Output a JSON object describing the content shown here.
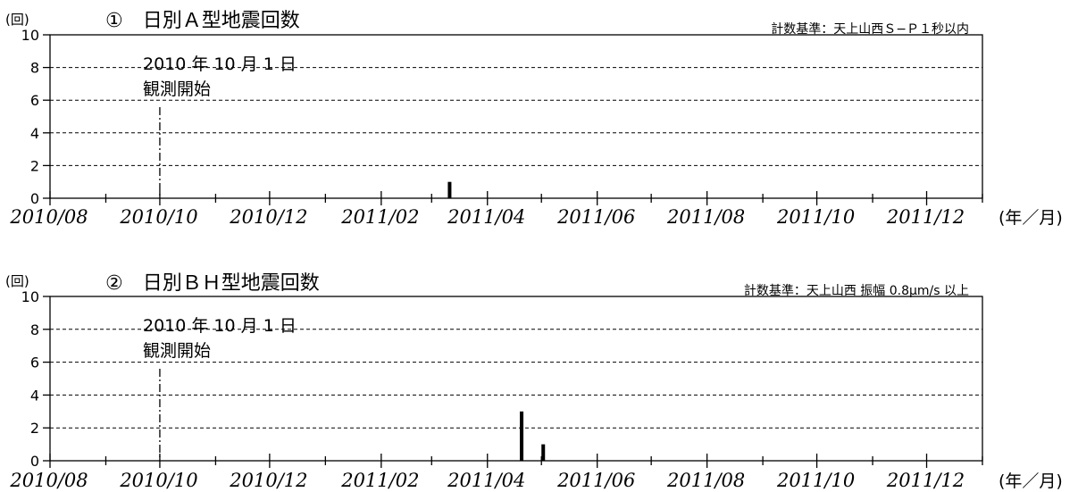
{
  "chart_data": [
    {
      "type": "bar",
      "title": "①　日別Ａ型地震回数",
      "criterion": "計数基準：天上山西Ｓ−Ｐ１秒以内",
      "y_unit": "(回)",
      "x_unit": "(年／月)",
      "ylim": [
        0,
        10
      ],
      "y_ticks": [
        0,
        2,
        4,
        6,
        8,
        10
      ],
      "x_range": [
        "2010-08-01",
        "2012-01-01"
      ],
      "x_tick_labels": [
        {
          "date": "2010-08-01",
          "label": "2010/08"
        },
        {
          "date": "2010-10-01",
          "label": "2010/10"
        },
        {
          "date": "2010-12-01",
          "label": "2010/12"
        },
        {
          "date": "2011-02-01",
          "label": "2011/02"
        },
        {
          "date": "2011-04-01",
          "label": "2011/04"
        },
        {
          "date": "2011-06-01",
          "label": "2011/06"
        },
        {
          "date": "2011-08-01",
          "label": "2011/08"
        },
        {
          "date": "2011-10-01",
          "label": "2011/10"
        },
        {
          "date": "2011-12-01",
          "label": "2011/12"
        }
      ],
      "grid": "horizontal dashed",
      "annotation": {
        "date": "2010-10-01",
        "line1": "2010 年 10 月 1 日",
        "line2": "観測開始"
      },
      "bars": [
        {
          "date": "2011-03-11",
          "value": 1
        }
      ]
    },
    {
      "type": "bar",
      "title": "②　日別ＢＨ型地震回数",
      "criterion": "計数基準：天上山西 振幅 0.8μm/s 以上",
      "y_unit": "(回)",
      "x_unit": "(年／月)",
      "ylim": [
        0,
        10
      ],
      "y_ticks": [
        0,
        2,
        4,
        6,
        8,
        10
      ],
      "x_range": [
        "2010-08-01",
        "2012-01-01"
      ],
      "x_tick_labels": [
        {
          "date": "2010-08-01",
          "label": "2010/08"
        },
        {
          "date": "2010-10-01",
          "label": "2010/10"
        },
        {
          "date": "2010-12-01",
          "label": "2010/12"
        },
        {
          "date": "2011-02-01",
          "label": "2011/02"
        },
        {
          "date": "2011-04-01",
          "label": "2011/04"
        },
        {
          "date": "2011-06-01",
          "label": "2011/06"
        },
        {
          "date": "2011-08-01",
          "label": "2011/08"
        },
        {
          "date": "2011-10-01",
          "label": "2011/10"
        },
        {
          "date": "2011-12-01",
          "label": "2011/12"
        }
      ],
      "grid": "horizontal dashed",
      "annotation": {
        "date": "2010-10-01",
        "line1": "2010 年 10 月 1 日",
        "line2": "観測開始"
      },
      "bars": [
        {
          "date": "2011-04-20",
          "value": 3
        },
        {
          "date": "2011-05-02",
          "value": 1
        }
      ]
    }
  ]
}
